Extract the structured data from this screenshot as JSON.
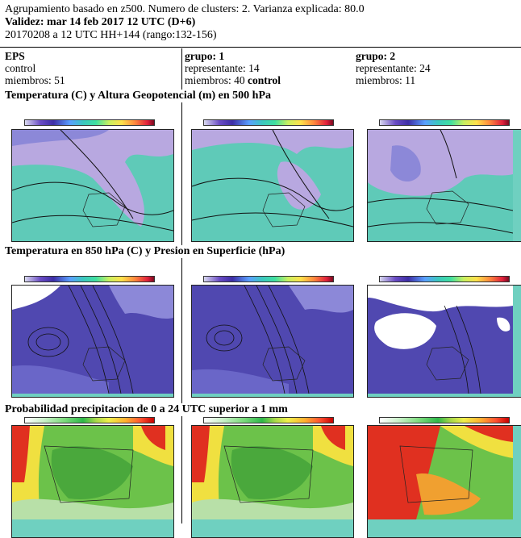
{
  "header": {
    "line1": "Agrupamiento basado en z500. Numero de clusters: 2. Varianza explicada: 80.0",
    "line2": "Validez: mar 14 feb 2017 12 UTC (D+6)",
    "line3": "20170208 a 12 UTC HH+144 (rango:132-156)"
  },
  "columns": [
    {
      "title": "EPS",
      "line_a": "control",
      "line_b": "miembros: 51",
      "line_b_bold": ""
    },
    {
      "title": "grupo: 1",
      "line_a": "representante: 14",
      "line_b": "miembros: 40 ",
      "line_b_bold": "control"
    },
    {
      "title": "grupo: 2",
      "line_a": "representante: 24",
      "line_b": "miembros: 11",
      "line_b_bold": ""
    }
  ],
  "sections": [
    {
      "title": "Temperatura (C) y Altura Geopotencial (m) en 500 hPa",
      "colorbar": "temperature"
    },
    {
      "title": "Temperatura en 850 hPa (C) y Presion en Superficie (hPa)",
      "colorbar": "temperature"
    },
    {
      "title": "Probabilidad precipitacion de 0 a 24 UTC superior a 1 mm",
      "colorbar": "probability"
    }
  ],
  "colors": {
    "z500_teal": "#5fcab8",
    "z500_lavender": "#b8a8e0",
    "t850_purple": "#5048b0",
    "t850_light": "#8c88d8",
    "prob_green": "#6cc24a",
    "prob_yellow": "#f0e040",
    "prob_red": "#e03020",
    "coast": "#222222",
    "contour": "#111111"
  }
}
